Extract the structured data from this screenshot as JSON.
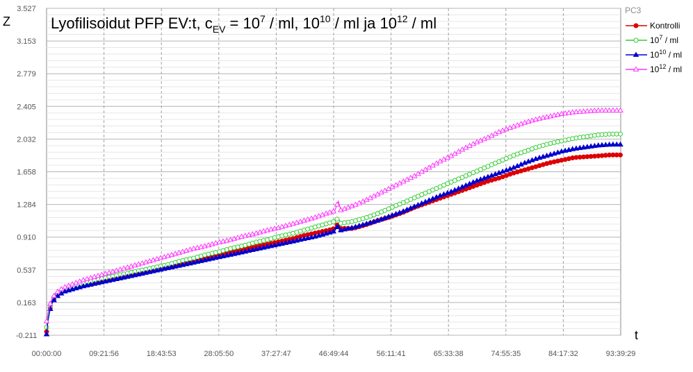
{
  "chart_data": {
    "type": "line",
    "title": {
      "prefix": "Lyofilisoidut PFP EV:t, c",
      "sub": "EV",
      "eq": " = 10",
      "exp1": "7",
      "mid1": " / ml, 10",
      "exp2": "10",
      "mid2": " / ml ja 10",
      "exp3": "12",
      "suffix": " / ml"
    },
    "xlabel": "t",
    "ylabel": "Z",
    "legend_title": "PC3",
    "legend_position": "right",
    "grid": true,
    "ylim": [
      -0.211,
      3.527
    ],
    "yticks": [
      "-0.211",
      "0.163",
      "0.537",
      "0.910",
      "1.284",
      "1.658",
      "2.032",
      "2.405",
      "2.779",
      "3.153",
      "3.527"
    ],
    "x_unit": "hours",
    "xlim": [
      0,
      93.658
    ],
    "xticks": [
      "00:00:00",
      "09:21:56",
      "18:43:53",
      "28:05:50",
      "37:27:47",
      "46:49:44",
      "56:11:41",
      "65:33:38",
      "74:55:35",
      "84:17:32",
      "93:39:29"
    ],
    "series": [
      {
        "name": "Kontrolli",
        "name_base": "Kontrolli",
        "name_exp": "",
        "name_suffix": "",
        "color": "#dd0000",
        "marker": "circle-filled",
        "points": [
          [
            0,
            -0.17
          ],
          [
            0.25,
            -0.02
          ],
          [
            0.6,
            0.1
          ],
          [
            1.0,
            0.18
          ],
          [
            1.5,
            0.23
          ],
          [
            2.2,
            0.27
          ],
          [
            3.0,
            0.3
          ],
          [
            4.5,
            0.33
          ],
          [
            6,
            0.36
          ],
          [
            8,
            0.4
          ],
          [
            10,
            0.43
          ],
          [
            12,
            0.46
          ],
          [
            14,
            0.49
          ],
          [
            16,
            0.52
          ],
          [
            18,
            0.55
          ],
          [
            20,
            0.58
          ],
          [
            22,
            0.61
          ],
          [
            24,
            0.65
          ],
          [
            26,
            0.68
          ],
          [
            28,
            0.71
          ],
          [
            30,
            0.74
          ],
          [
            32,
            0.77
          ],
          [
            34,
            0.8
          ],
          [
            36,
            0.83
          ],
          [
            38,
            0.86
          ],
          [
            40,
            0.89
          ],
          [
            42,
            0.93
          ],
          [
            44,
            0.96
          ],
          [
            46,
            0.99
          ],
          [
            47,
            1.01
          ],
          [
            47.6,
            1.07
          ],
          [
            48.0,
            1.01
          ],
          [
            50,
            1.01
          ],
          [
            52,
            1.05
          ],
          [
            54,
            1.1
          ],
          [
            56,
            1.14
          ],
          [
            58,
            1.19
          ],
          [
            60,
            1.25
          ],
          [
            62,
            1.3
          ],
          [
            64,
            1.35
          ],
          [
            66,
            1.4
          ],
          [
            68,
            1.45
          ],
          [
            70,
            1.5
          ],
          [
            72,
            1.55
          ],
          [
            74,
            1.59
          ],
          [
            76,
            1.64
          ],
          [
            78,
            1.68
          ],
          [
            80,
            1.72
          ],
          [
            82,
            1.76
          ],
          [
            84,
            1.79
          ],
          [
            86,
            1.82
          ],
          [
            88,
            1.83
          ],
          [
            90,
            1.84
          ],
          [
            92,
            1.85
          ],
          [
            93.66,
            1.85
          ]
        ]
      },
      {
        "name": "10^7 / ml",
        "name_base": "10",
        "name_exp": "7",
        "name_suffix": " / ml",
        "color": "#33cc33",
        "marker": "circle-open",
        "points": [
          [
            0,
            -0.12
          ],
          [
            0.25,
            0.0
          ],
          [
            0.6,
            0.12
          ],
          [
            1.0,
            0.2
          ],
          [
            1.5,
            0.25
          ],
          [
            2.2,
            0.29
          ],
          [
            3.0,
            0.32
          ],
          [
            4.5,
            0.35
          ],
          [
            6,
            0.38
          ],
          [
            8,
            0.42
          ],
          [
            10,
            0.45
          ],
          [
            12,
            0.48
          ],
          [
            14,
            0.51
          ],
          [
            16,
            0.54
          ],
          [
            18,
            0.57
          ],
          [
            20,
            0.6
          ],
          [
            22,
            0.64
          ],
          [
            24,
            0.67
          ],
          [
            26,
            0.71
          ],
          [
            28,
            0.74
          ],
          [
            30,
            0.78
          ],
          [
            32,
            0.81
          ],
          [
            34,
            0.85
          ],
          [
            36,
            0.88
          ],
          [
            38,
            0.92
          ],
          [
            40,
            0.95
          ],
          [
            42,
            0.99
          ],
          [
            44,
            1.03
          ],
          [
            46,
            1.07
          ],
          [
            47,
            1.09
          ],
          [
            47.6,
            1.13
          ],
          [
            48.0,
            1.07
          ],
          [
            50,
            1.09
          ],
          [
            52,
            1.13
          ],
          [
            54,
            1.18
          ],
          [
            56,
            1.24
          ],
          [
            58,
            1.3
          ],
          [
            60,
            1.36
          ],
          [
            62,
            1.42
          ],
          [
            64,
            1.48
          ],
          [
            66,
            1.54
          ],
          [
            68,
            1.6
          ],
          [
            70,
            1.66
          ],
          [
            72,
            1.72
          ],
          [
            74,
            1.78
          ],
          [
            76,
            1.84
          ],
          [
            78,
            1.89
          ],
          [
            80,
            1.94
          ],
          [
            82,
            1.98
          ],
          [
            84,
            2.01
          ],
          [
            86,
            2.04
          ],
          [
            88,
            2.06
          ],
          [
            90,
            2.08
          ],
          [
            92,
            2.09
          ],
          [
            93.66,
            2.09
          ]
        ]
      },
      {
        "name": "10^10 / ml",
        "name_base": "10",
        "name_exp": "10",
        "name_suffix": " / ml",
        "color": "#0000cc",
        "marker": "triangle-filled",
        "points": [
          [
            0,
            -0.2
          ],
          [
            0.25,
            -0.04
          ],
          [
            0.6,
            0.09
          ],
          [
            1.0,
            0.17
          ],
          [
            1.5,
            0.22
          ],
          [
            2.2,
            0.26
          ],
          [
            3.0,
            0.29
          ],
          [
            4.5,
            0.32
          ],
          [
            6,
            0.35
          ],
          [
            8,
            0.38
          ],
          [
            10,
            0.41
          ],
          [
            12,
            0.44
          ],
          [
            14,
            0.47
          ],
          [
            16,
            0.5
          ],
          [
            18,
            0.53
          ],
          [
            20,
            0.56
          ],
          [
            22,
            0.59
          ],
          [
            24,
            0.62
          ],
          [
            26,
            0.65
          ],
          [
            28,
            0.68
          ],
          [
            30,
            0.71
          ],
          [
            32,
            0.74
          ],
          [
            34,
            0.77
          ],
          [
            36,
            0.8
          ],
          [
            38,
            0.83
          ],
          [
            40,
            0.86
          ],
          [
            42,
            0.89
          ],
          [
            44,
            0.92
          ],
          [
            46,
            0.96
          ],
          [
            47,
            0.98
          ],
          [
            47.6,
            1.05
          ],
          [
            48.0,
            0.99
          ],
          [
            50,
            1.02
          ],
          [
            52,
            1.06
          ],
          [
            54,
            1.1
          ],
          [
            56,
            1.15
          ],
          [
            58,
            1.2
          ],
          [
            60,
            1.26
          ],
          [
            62,
            1.32
          ],
          [
            64,
            1.38
          ],
          [
            66,
            1.43
          ],
          [
            68,
            1.49
          ],
          [
            70,
            1.55
          ],
          [
            72,
            1.6
          ],
          [
            74,
            1.65
          ],
          [
            76,
            1.7
          ],
          [
            78,
            1.76
          ],
          [
            80,
            1.81
          ],
          [
            82,
            1.85
          ],
          [
            84,
            1.89
          ],
          [
            86,
            1.92
          ],
          [
            88,
            1.94
          ],
          [
            90,
            1.96
          ],
          [
            92,
            1.97
          ],
          [
            93.66,
            1.97
          ]
        ]
      },
      {
        "name": "10^12 / ml",
        "name_base": "10",
        "name_exp": "12",
        "name_suffix": " / ml",
        "color": "#ff33ff",
        "marker": "triangle-open",
        "points": [
          [
            0,
            -0.05
          ],
          [
            0.25,
            0.05
          ],
          [
            0.6,
            0.15
          ],
          [
            1.0,
            0.22
          ],
          [
            1.5,
            0.27
          ],
          [
            2.2,
            0.31
          ],
          [
            3.0,
            0.34
          ],
          [
            4.5,
            0.38
          ],
          [
            6,
            0.42
          ],
          [
            8,
            0.46
          ],
          [
            10,
            0.5
          ],
          [
            12,
            0.54
          ],
          [
            14,
            0.58
          ],
          [
            16,
            0.62
          ],
          [
            18,
            0.66
          ],
          [
            20,
            0.7
          ],
          [
            22,
            0.74
          ],
          [
            24,
            0.78
          ],
          [
            26,
            0.81
          ],
          [
            28,
            0.85
          ],
          [
            30,
            0.88
          ],
          [
            32,
            0.92
          ],
          [
            34,
            0.95
          ],
          [
            36,
            0.99
          ],
          [
            38,
            1.02
          ],
          [
            40,
            1.06
          ],
          [
            42,
            1.1
          ],
          [
            44,
            1.14
          ],
          [
            46,
            1.19
          ],
          [
            47,
            1.21
          ],
          [
            47.6,
            1.32
          ],
          [
            48.0,
            1.22
          ],
          [
            50,
            1.27
          ],
          [
            52,
            1.33
          ],
          [
            54,
            1.4
          ],
          [
            56,
            1.47
          ],
          [
            58,
            1.54
          ],
          [
            60,
            1.61
          ],
          [
            62,
            1.69
          ],
          [
            64,
            1.77
          ],
          [
            66,
            1.84
          ],
          [
            68,
            1.92
          ],
          [
            70,
            1.99
          ],
          [
            72,
            2.05
          ],
          [
            74,
            2.12
          ],
          [
            76,
            2.17
          ],
          [
            78,
            2.22
          ],
          [
            80,
            2.26
          ],
          [
            82,
            2.29
          ],
          [
            84,
            2.32
          ],
          [
            86,
            2.34
          ],
          [
            88,
            2.35
          ],
          [
            90,
            2.36
          ],
          [
            92,
            2.36
          ],
          [
            93.66,
            2.36
          ]
        ]
      }
    ]
  }
}
